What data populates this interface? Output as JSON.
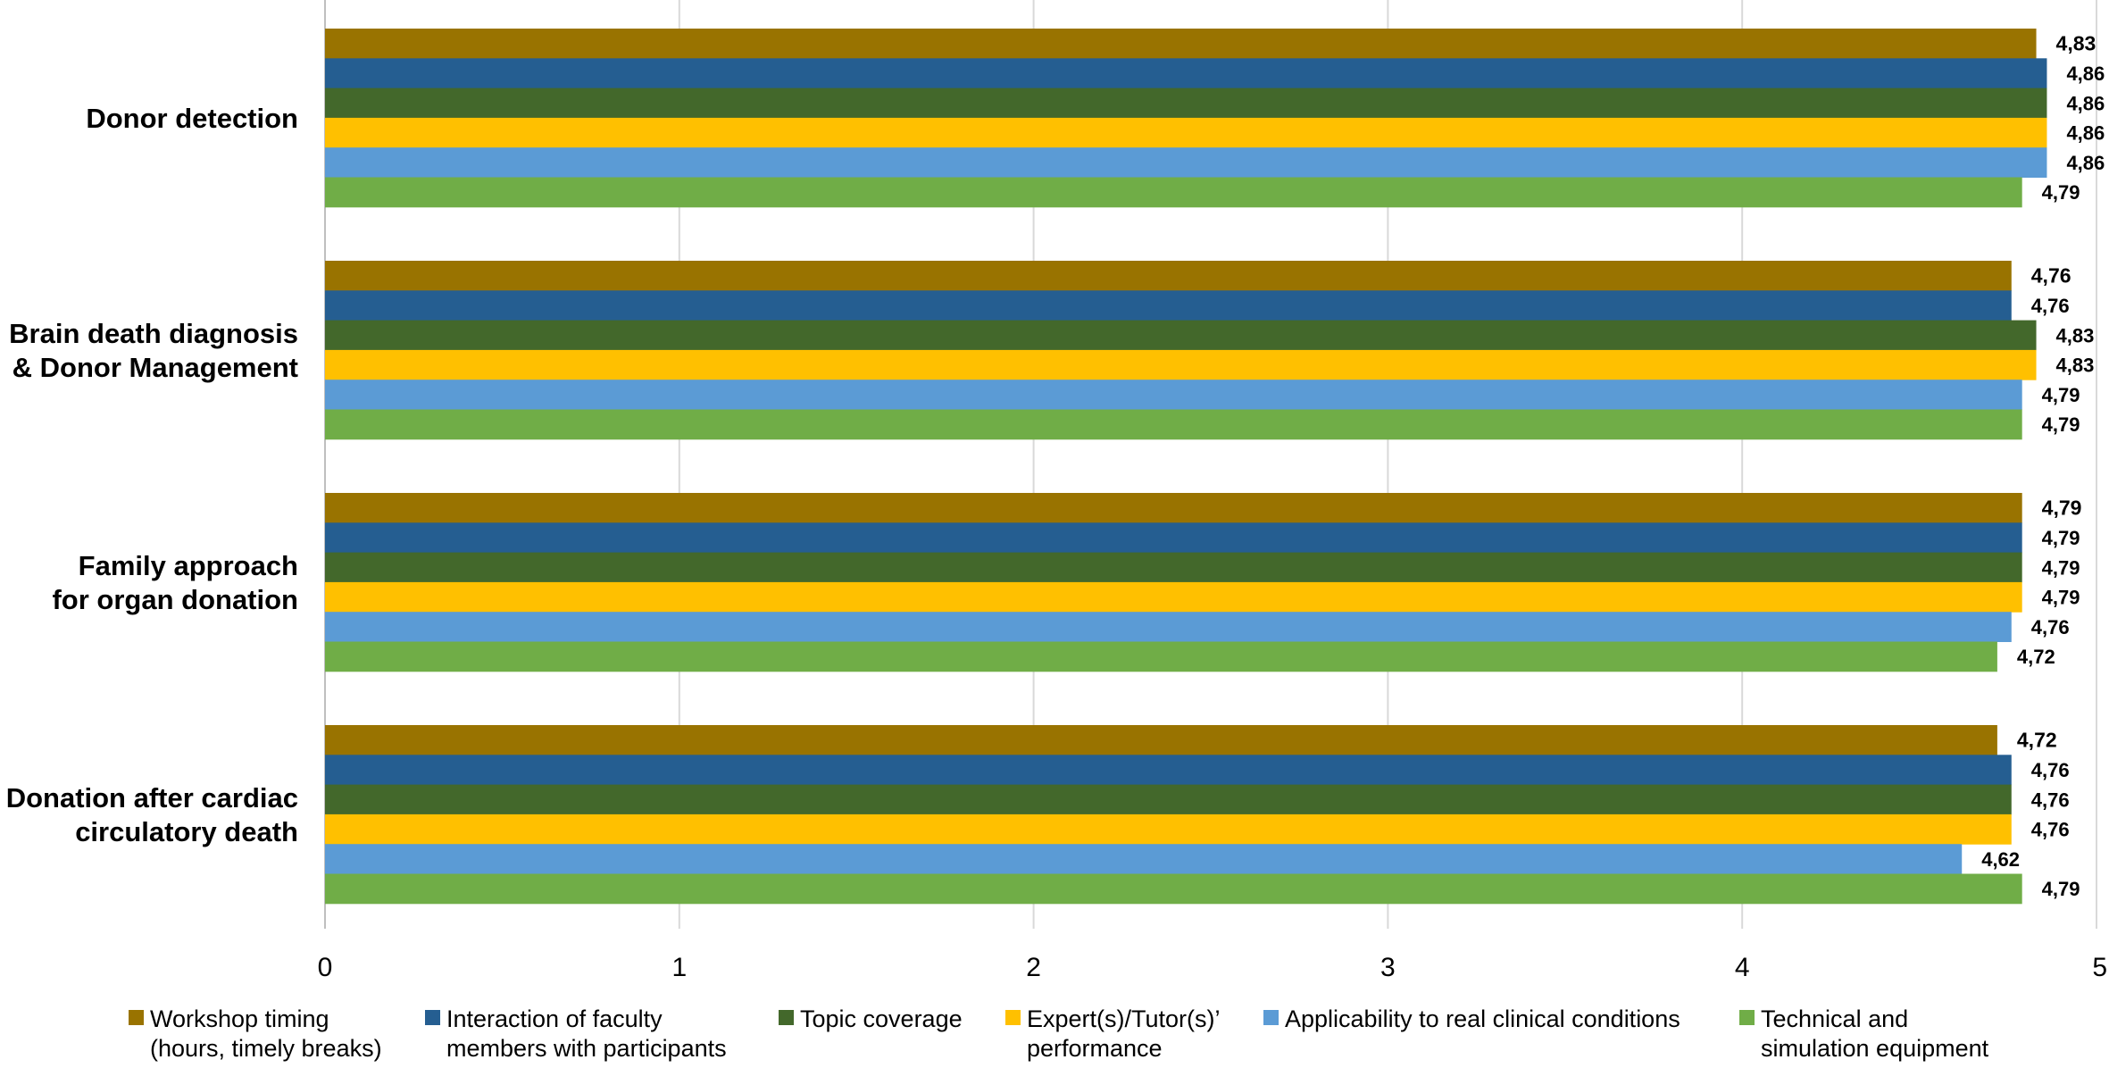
{
  "chart_data": {
    "type": "bar",
    "orientation": "horizontal",
    "categories": [
      [
        "Donor detection"
      ],
      [
        "Brain death diagnosis",
        "& Donor Management"
      ],
      [
        "Family approach",
        "for organ donation"
      ],
      [
        "Donation after cardiac",
        "circulatory death"
      ]
    ],
    "series": [
      {
        "name": [
          "Workshop timing",
          "(hours, timely breaks)"
        ],
        "color": "#997300",
        "values": [
          4.83,
          4.76,
          4.79,
          4.72
        ],
        "labels": [
          "4,83",
          "4,76",
          "4,79",
          "4,72"
        ]
      },
      {
        "name": [
          "Interaction of faculty",
          "members with participants"
        ],
        "color": "#255E91",
        "values": [
          4.86,
          4.76,
          4.79,
          4.76
        ],
        "labels": [
          "4,86",
          "4,76",
          "4,79",
          "4,76"
        ]
      },
      {
        "name": [
          "Topic coverage"
        ],
        "color": "#43682B",
        "values": [
          4.86,
          4.83,
          4.79,
          4.76
        ],
        "labels": [
          "4,86",
          "4,83",
          "4,79",
          "4,76"
        ]
      },
      {
        "name": [
          "Expert(s)/Tutor(s)’",
          "performance"
        ],
        "color": "#FFC000",
        "values": [
          4.86,
          4.83,
          4.79,
          4.76
        ],
        "labels": [
          "4,86",
          "4,83",
          "4,79",
          "4,76"
        ]
      },
      {
        "name": [
          "Applicability to real clinical conditions"
        ],
        "color": "#5B9BD5",
        "values": [
          4.86,
          4.79,
          4.76,
          4.62
        ],
        "labels": [
          "4,86",
          "4,79",
          "4,76",
          "4,62"
        ]
      },
      {
        "name": [
          "Technical and",
          "simulation equipment"
        ],
        "color": "#70AD47",
        "values": [
          4.79,
          4.79,
          4.72,
          4.79
        ],
        "labels": [
          "4,79",
          "4,79",
          "4,72",
          "4,79"
        ]
      }
    ],
    "xlim": [
      0,
      5
    ],
    "xticks": [
      "0",
      "1",
      "2",
      "3",
      "4",
      "5"
    ],
    "grid": true,
    "legend_position": "bottom",
    "title": "",
    "xlabel": "",
    "ylabel": ""
  }
}
